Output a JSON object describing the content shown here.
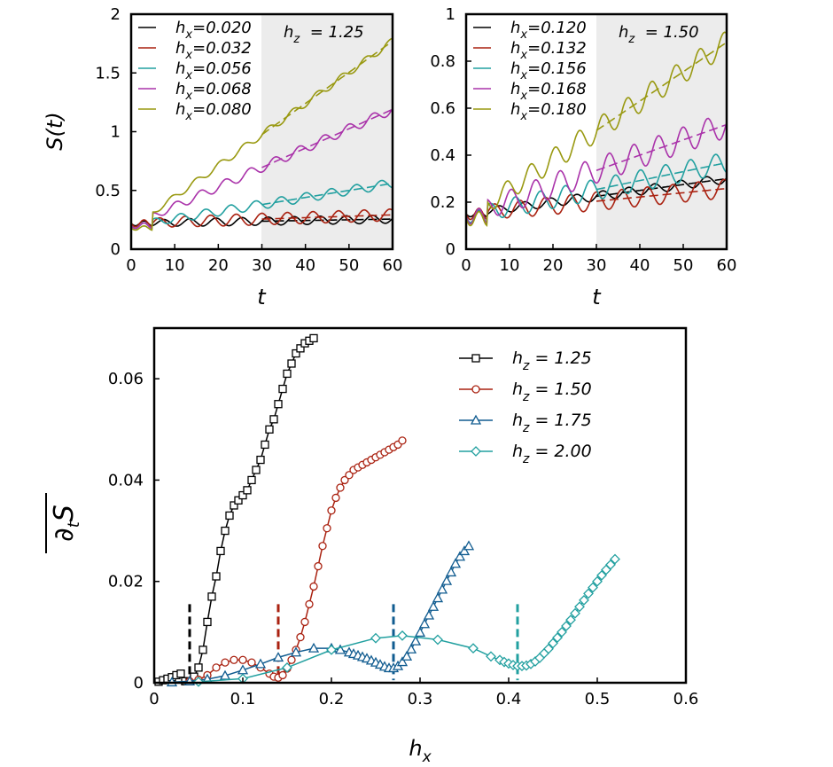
{
  "chart_data": [
    {
      "type": "line",
      "panel": "top-left",
      "annotation": "h_z = 1.25",
      "shaded_from_t": 30,
      "xlabel": "t",
      "ylabel": "S(t)",
      "xlim": [
        0,
        60
      ],
      "ylim": [
        0,
        2
      ],
      "xticks": [
        "0",
        "10",
        "20",
        "30",
        "40",
        "50",
        "60"
      ],
      "yticks": [
        "0",
        "0.5",
        "1",
        "1.5",
        "2"
      ],
      "series": [
        {
          "name": "h_x=0.020",
          "label_pre": "h",
          "label_sub": "x",
          "label_value": "=0.020",
          "color": "#000000",
          "base": 0.22,
          "slope": 0.0006,
          "osc": 0.035
        },
        {
          "name": "h_x=0.032",
          "label_pre": "h",
          "label_sub": "x",
          "label_value": "=0.032",
          "color": "#aa2211",
          "base": 0.22,
          "slope": 0.0012,
          "osc": 0.05
        },
        {
          "name": "h_x=0.056",
          "label_pre": "h",
          "label_sub": "x",
          "label_value": "=0.056",
          "color": "#22a0a0",
          "base": 0.2,
          "slope": 0.006,
          "osc": 0.04
        },
        {
          "name": "h_x=0.068",
          "label_pre": "h",
          "label_sub": "x",
          "label_value": "=0.068",
          "color": "#aa33aa",
          "base": 0.2,
          "slope": 0.0165,
          "osc": 0.04
        },
        {
          "name": "h_x=0.080",
          "label_pre": "h",
          "label_sub": "x",
          "label_value": "=0.080",
          "color": "#999911",
          "base": 0.18,
          "slope": 0.0265,
          "osc": 0.03
        }
      ]
    },
    {
      "type": "line",
      "panel": "top-right",
      "annotation": "h_z = 1.50",
      "shaded_from_t": 30,
      "xlabel": "t",
      "ylabel": "",
      "xlim": [
        0,
        60
      ],
      "ylim": [
        0,
        1
      ],
      "xticks": [
        "0",
        "10",
        "20",
        "30",
        "40",
        "50",
        "60"
      ],
      "yticks": [
        "0",
        "0.2",
        "0.4",
        "0.6",
        "0.8",
        "1"
      ],
      "series": [
        {
          "name": "h_x=0.120",
          "label_pre": "h",
          "label_sub": "x",
          "label_value": "=0.120",
          "color": "#000000",
          "base": 0.15,
          "slope": 0.0025,
          "osc": 0.02
        },
        {
          "name": "h_x=0.132",
          "label_pre": "h",
          "label_sub": "x",
          "label_value": "=0.132",
          "color": "#aa2211",
          "base": 0.15,
          "slope": 0.0018,
          "osc": 0.04
        },
        {
          "name": "h_x=0.156",
          "label_pre": "h",
          "label_sub": "x",
          "label_value": "=0.156",
          "color": "#22a0a0",
          "base": 0.14,
          "slope": 0.0038,
          "osc": 0.045
        },
        {
          "name": "h_x=0.168",
          "label_pre": "h",
          "label_sub": "x",
          "label_value": "=0.168",
          "color": "#aa33aa",
          "base": 0.14,
          "slope": 0.0065,
          "osc": 0.055
        },
        {
          "name": "h_x=0.180",
          "label_pre": "h",
          "label_sub": "x",
          "label_value": "=0.180",
          "color": "#999911",
          "base": 0.13,
          "slope": 0.0125,
          "osc": 0.05
        }
      ]
    },
    {
      "type": "scatter",
      "panel": "bottom",
      "xlabel": "h_x",
      "ylabel": "overline(∂_t S)",
      "ylabel_main": "∂",
      "ylabel_sub": "t",
      "ylabel_tail": "S",
      "xlim": [
        0,
        0.6
      ],
      "ylim": [
        0,
        0.07
      ],
      "xticks": [
        "0",
        "0.1",
        "0.2",
        "0.3",
        "0.4",
        "0.5",
        "0.6"
      ],
      "yticks": [
        "0",
        "0.02",
        "0.04",
        "0.06"
      ],
      "series": [
        {
          "name": "h_z = 1.25",
          "label_pre": "h",
          "label_sub": "z",
          "label_value": " = 1.25",
          "color": "#000000",
          "marker": "square",
          "critical_hx": 0.04,
          "x": [
            0.005,
            0.01,
            0.015,
            0.02,
            0.025,
            0.03,
            0.035,
            0.04,
            0.045,
            0.05,
            0.055,
            0.06,
            0.065,
            0.07,
            0.075,
            0.08,
            0.085,
            0.09,
            0.095,
            0.1,
            0.105,
            0.11,
            0.115,
            0.12,
            0.125,
            0.13,
            0.135,
            0.14,
            0.145,
            0.15,
            0.155,
            0.16,
            0.165,
            0.17,
            0.175,
            0.18
          ],
          "y": [
            0.0002,
            0.0005,
            0.0008,
            0.0011,
            0.0015,
            0.0018,
            0.0003,
            0.0003,
            0.0012,
            0.003,
            0.0065,
            0.012,
            0.017,
            0.021,
            0.026,
            0.03,
            0.033,
            0.035,
            0.036,
            0.037,
            0.038,
            0.04,
            0.042,
            0.044,
            0.047,
            0.05,
            0.052,
            0.055,
            0.058,
            0.061,
            0.063,
            0.065,
            0.066,
            0.067,
            0.0675,
            0.068
          ]
        },
        {
          "name": "h_z = 1.50",
          "label_pre": "h",
          "label_sub": "z",
          "label_value": " = 1.50",
          "color": "#aa2211",
          "marker": "circle",
          "critical_hx": 0.14,
          "x": [
            0.04,
            0.05,
            0.06,
            0.07,
            0.08,
            0.09,
            0.1,
            0.11,
            0.12,
            0.13,
            0.135,
            0.14,
            0.145,
            0.15,
            0.155,
            0.16,
            0.165,
            0.17,
            0.175,
            0.18,
            0.185,
            0.19,
            0.195,
            0.2,
            0.205,
            0.21,
            0.215,
            0.22,
            0.225,
            0.23,
            0.235,
            0.24,
            0.245,
            0.25,
            0.255,
            0.26,
            0.265,
            0.27,
            0.275,
            0.28
          ],
          "y": [
            0.0003,
            0.0006,
            0.0015,
            0.003,
            0.004,
            0.0045,
            0.0045,
            0.004,
            0.003,
            0.0018,
            0.0012,
            0.001,
            0.0015,
            0.0028,
            0.0045,
            0.0065,
            0.009,
            0.012,
            0.0155,
            0.019,
            0.023,
            0.027,
            0.0305,
            0.034,
            0.0365,
            0.0385,
            0.04,
            0.041,
            0.042,
            0.0425,
            0.043,
            0.0435,
            0.044,
            0.0445,
            0.045,
            0.0455,
            0.046,
            0.0465,
            0.047,
            0.0478
          ]
        },
        {
          "name": "h_z = 1.75",
          "label_pre": "h",
          "label_sub": "z",
          "label_value": " = 1.75",
          "color": "#115c90",
          "marker": "triangle",
          "critical_hx": 0.27,
          "x": [
            0.02,
            0.04,
            0.06,
            0.08,
            0.1,
            0.12,
            0.14,
            0.16,
            0.18,
            0.2,
            0.21,
            0.22,
            0.225,
            0.23,
            0.235,
            0.24,
            0.245,
            0.25,
            0.255,
            0.26,
            0.265,
            0.27,
            0.275,
            0.28,
            0.285,
            0.29,
            0.295,
            0.3,
            0.305,
            0.31,
            0.315,
            0.32,
            0.325,
            0.33,
            0.335,
            0.34,
            0.345,
            0.35,
            0.355
          ],
          "y": [
            0.0001,
            0.0003,
            0.0007,
            0.0014,
            0.0025,
            0.0037,
            0.005,
            0.006,
            0.0068,
            0.0068,
            0.0065,
            0.006,
            0.0057,
            0.0054,
            0.0051,
            0.0048,
            0.0044,
            0.004,
            0.0036,
            0.0032,
            0.0029,
            0.0029,
            0.0033,
            0.0041,
            0.0052,
            0.0066,
            0.0082,
            0.0099,
            0.0116,
            0.0133,
            0.015,
            0.0167,
            0.0184,
            0.0201,
            0.0218,
            0.0235,
            0.0249,
            0.026,
            0.027
          ]
        },
        {
          "name": "h_z = 2.00",
          "label_pre": "h",
          "label_sub": "z",
          "label_value": " = 2.00",
          "color": "#22a0a0",
          "marker": "diamond",
          "critical_hx": 0.41,
          "x": [
            0.05,
            0.1,
            0.15,
            0.2,
            0.25,
            0.28,
            0.32,
            0.36,
            0.38,
            0.39,
            0.395,
            0.4,
            0.405,
            0.41,
            0.415,
            0.42,
            0.425,
            0.43,
            0.435,
            0.44,
            0.445,
            0.45,
            0.455,
            0.46,
            0.465,
            0.47,
            0.475,
            0.48,
            0.485,
            0.49,
            0.495,
            0.5,
            0.505,
            0.51,
            0.515,
            0.52
          ],
          "y": [
            0.0002,
            0.0008,
            0.003,
            0.0065,
            0.0088,
            0.0093,
            0.0085,
            0.0068,
            0.0052,
            0.0045,
            0.0041,
            0.0038,
            0.0035,
            0.0033,
            0.0033,
            0.0034,
            0.0037,
            0.0042,
            0.0049,
            0.0058,
            0.0067,
            0.0078,
            0.0089,
            0.01,
            0.0112,
            0.0124,
            0.0137,
            0.015,
            0.0163,
            0.0176,
            0.0188,
            0.02,
            0.0212,
            0.0223,
            0.0233,
            0.0244
          ]
        }
      ]
    }
  ]
}
